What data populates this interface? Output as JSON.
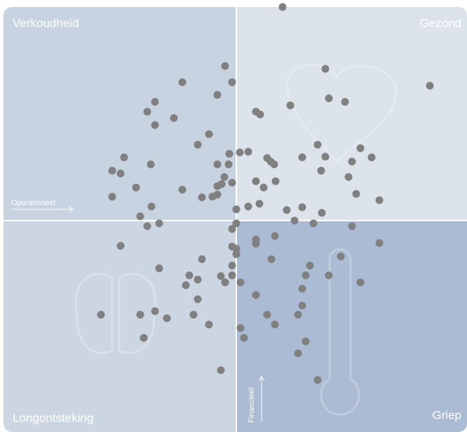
{
  "chart_data": {
    "type": "scatter",
    "quadrant_labels": {
      "top_left": "Verkoudheid",
      "top_right": "Gezond",
      "bottom_left": "Longontsteking",
      "bottom_right": "Griep"
    },
    "x_label": "Operationeel",
    "y_label": "Financieel",
    "xlim": [
      -332,
      329
    ],
    "ylim": [
      -301,
      304
    ],
    "grid": false,
    "series": [
      {
        "color": "#808080",
        "x": [
          66,
          -16,
          127,
          -77,
          -6,
          276,
          -27,
          132,
          155,
          -116,
          77,
          -127,
          28,
          34,
          -89,
          -116,
          -39,
          -55,
          116,
          177,
          5,
          17,
          -10,
          127,
          44,
          94,
          193,
          -160,
          49,
          54,
          165,
          -27,
          -11,
          -122,
          -177,
          -165,
          121,
          -17,
          160,
          28,
          56,
          -6,
          -21,
          -143,
          -27,
          39,
          -77,
          171,
          -177,
          -49,
          -34,
          -27,
          204,
          33,
          17,
          0,
          72,
          94,
          122,
          -121,
          -137,
          83,
          110,
          -110,
          -127,
          -6,
          0,
          55,
          28,
          28,
          165,
          204,
          -165,
          -6,
          0,
          0,
          149,
          -49,
          50,
          105,
          -6,
          -110,
          99,
          132,
          -67,
          -55,
          -22,
          -6,
          -72,
          -16,
          6,
          177,
          94,
          -55,
          28,
          94,
          -116,
          -193,
          -137,
          -99,
          -61,
          44,
          88,
          -39,
          55,
          6,
          11,
          -132,
          99,
          88,
          -22,
          116
        ],
        "values": [
          304,
          220,
          216,
          197,
          197,
          192,
          179,
          174,
          169,
          169,
          164,
          155,
          155,
          151,
          146,
          136,
          123,
          108,
          108,
          103,
          97,
          98,
          95,
          91,
          89,
          90,
          90,
          90,
          84,
          80,
          84,
          80,
          80,
          80,
          71,
          67,
          71,
          62,
          62,
          56,
          56,
          54,
          52,
          47,
          49,
          47,
          44,
          38,
          34,
          33,
          34,
          37,
          29,
          24,
          20,
          16,
          15,
          19,
          11,
          20,
          6,
          0,
          -4,
          -4,
          -8,
          -12,
          -4,
          -22,
          -27,
          -33,
          -8,
          -32,
          -36,
          -37,
          -40,
          -48,
          -51,
          -55,
          -55,
          -64,
          -64,
          -68,
          -78,
          -78,
          -78,
          -84,
          -79,
          -78,
          -92,
          -88,
          -88,
          -88,
          -97,
          -112,
          -106,
          -121,
          -129,
          -134,
          -134,
          -139,
          -134,
          -134,
          -134,
          -148,
          -148,
          -153,
          -167,
          -167,
          -172,
          -189,
          -213,
          -227
        ]
      }
    ]
  }
}
